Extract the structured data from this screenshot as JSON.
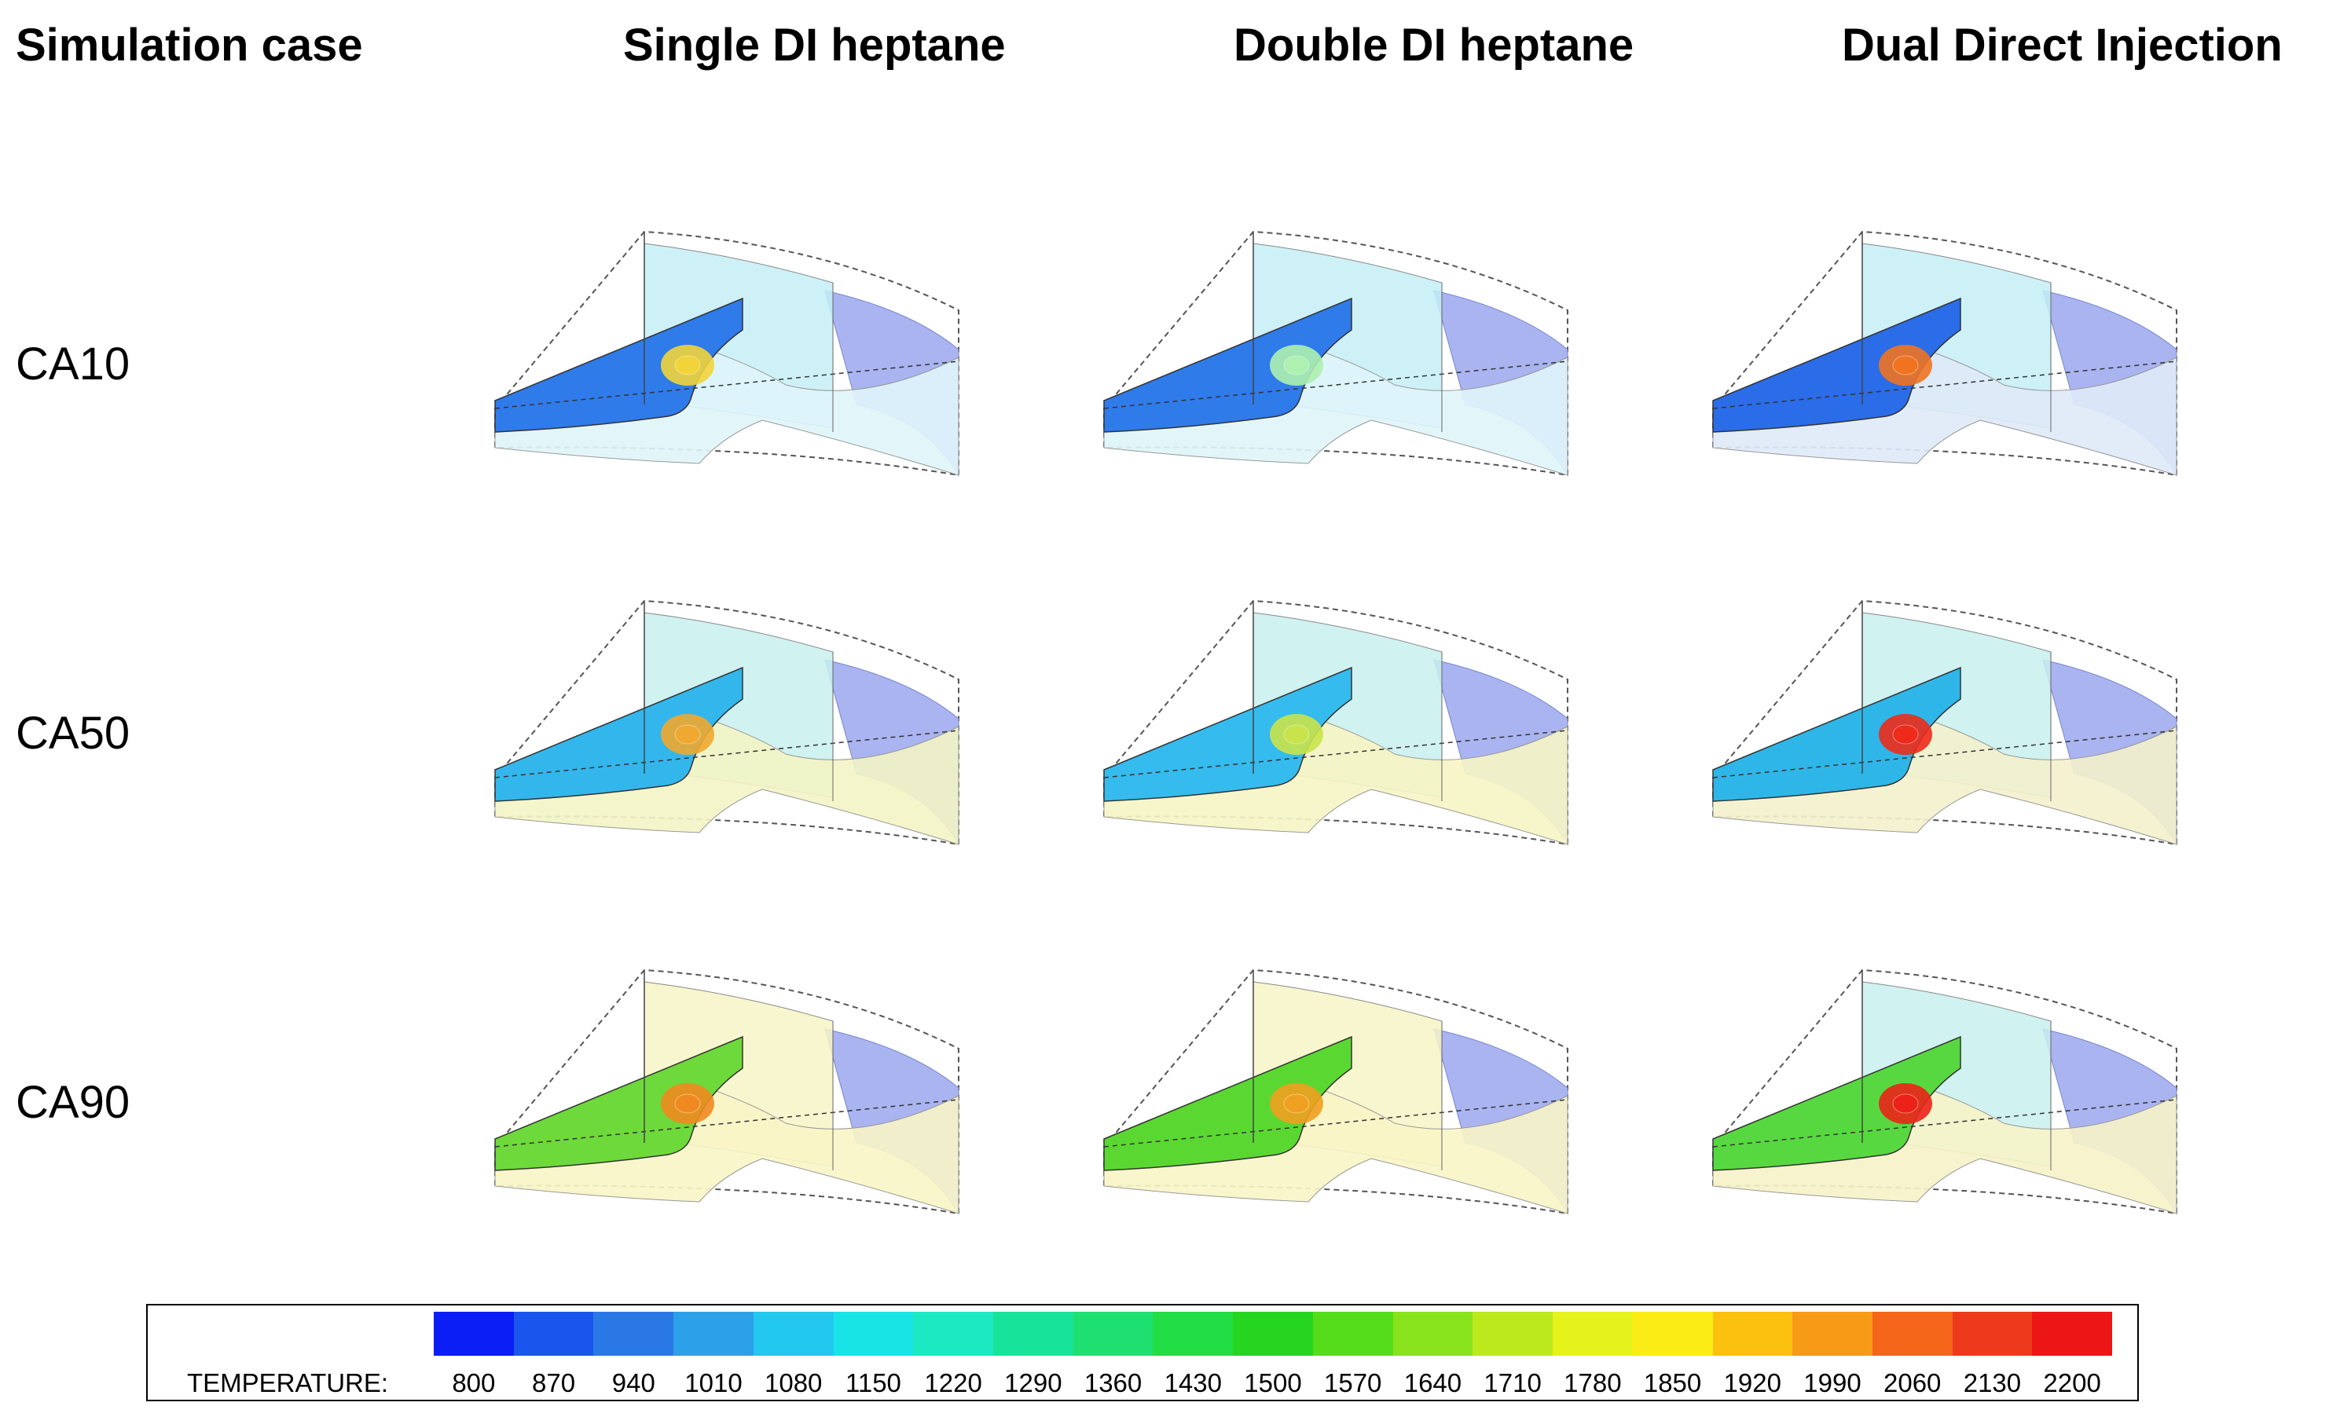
{
  "headers": {
    "case": "Simulation case",
    "col1": "Single DI heptane",
    "col2": "Double DI heptane",
    "col3": "Dual Direct Injection"
  },
  "rows": [
    "CA10",
    "CA50",
    "CA90"
  ],
  "legend": {
    "title": "TEMPERATURE:",
    "ticks": [
      "800",
      "870",
      "940",
      "1010",
      "1080",
      "1150",
      "1220",
      "1290",
      "1360",
      "1430",
      "1500",
      "1570",
      "1640",
      "1710",
      "1780",
      "1850",
      "1920",
      "1990",
      "2060",
      "2130",
      "2200"
    ],
    "colors": [
      "#0a1ef5",
      "#1a55ee",
      "#2a78e6",
      "#2ca0e8",
      "#23c8ef",
      "#18e4e6",
      "#1ce8c2",
      "#18e39a",
      "#1ee070",
      "#22dd45",
      "#26d51f",
      "#55dd1c",
      "#88e21c",
      "#bbe91e",
      "#e6f21c",
      "#fbec16",
      "#fcc00e",
      "#f79a16",
      "#f5661a",
      "#ee3a1c",
      "#ec1616"
    ]
  },
  "panels": [
    {
      "id": "ca10-single",
      "base": "#c4eef6",
      "wedge": "#dff5fa",
      "strip": "#2f7bea",
      "hot": "#f2d43a"
    },
    {
      "id": "ca10-double",
      "base": "#c4eef6",
      "wedge": "#dff5fa",
      "strip": "#2f7bea",
      "hot": "#aef0b0"
    },
    {
      "id": "ca10-dual",
      "base": "#c4eef6",
      "wedge": "#dfeaf8",
      "strip": "#2b6ce8",
      "hot": "#f07420"
    },
    {
      "id": "ca50-single",
      "base": "#c8f0ee",
      "wedge": "#f3f4c4",
      "strip": "#33b6ec",
      "hot": "#f0a830"
    },
    {
      "id": "ca50-double",
      "base": "#c8f0ee",
      "wedge": "#f6f5c4",
      "strip": "#35bbee",
      "hot": "#c9e44a"
    },
    {
      "id": "ca50-dual",
      "base": "#c8f0ee",
      "wedge": "#f3f1cc",
      "strip": "#2fb6e8",
      "hot": "#ee2a1a"
    },
    {
      "id": "ca90-single",
      "base": "#f7f4c6",
      "wedge": "#f8f5c6",
      "strip": "#6ed93a",
      "hot": "#f08a20"
    },
    {
      "id": "ca90-double",
      "base": "#f7f4c6",
      "wedge": "#f8f5c6",
      "strip": "#5ad831",
      "hot": "#f0a020"
    },
    {
      "id": "ca90-dual",
      "base": "#c8f0ee",
      "wedge": "#f6f3c8",
      "strip": "#58d840",
      "hot": "#ec2218"
    }
  ]
}
